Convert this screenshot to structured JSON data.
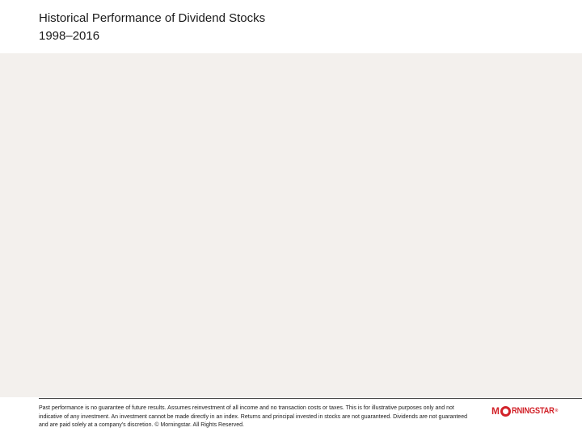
{
  "header": {
    "title": "Historical Performance of Dividend Stocks",
    "subtitle": "1998–2016"
  },
  "footer": {
    "disclaimer": "Past performance is no guarantee of future results. Assumes reinvestment of all income and no transaction costs or taxes. This is for illustrative purposes only and not indicative of any investment. An investment cannot be made directly in an index. Returns and principal invested in stocks are not guaranteed. Dividends are not guaranteed and are paid solely at a company's discretion. © Morningstar. All Rights Reserved.",
    "logo": {
      "first_letter": "M",
      "rest": "RNINGSTAR",
      "trademark": "®",
      "color": "#d2232a"
    }
  },
  "colors": {
    "content_background": "#f3f0ed",
    "brand_red": "#d2232a"
  }
}
